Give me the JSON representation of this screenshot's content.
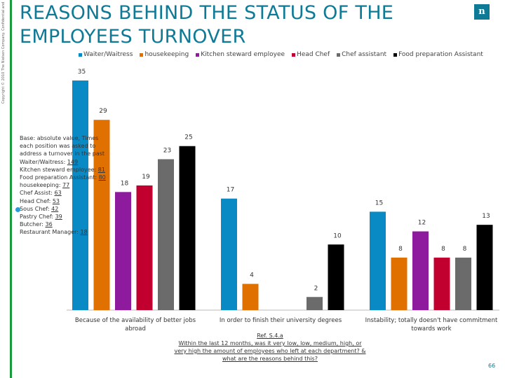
{
  "header": {
    "copyright": "Copyright © 2010 The Nielsen Company. Confidential and proprietary.",
    "title_line1": "REASONS BEHIND THE STATUS OF THE",
    "title_line2": "EMPLOYEES TURNOVER",
    "logo_text": "n"
  },
  "base_note": {
    "lines": [
      {
        "label": "Base: absolute value, Times",
        "value": ""
      },
      {
        "label": "each position was asked to",
        "value": ""
      },
      {
        "label": "address a turnover in the past",
        "value": ""
      },
      {
        "label": "Waiter/Waitress: ",
        "value": "149"
      },
      {
        "label": "Kitchen steward employee: ",
        "value": "81"
      },
      {
        "label": "Food preparation Assistant: ",
        "value": "80"
      },
      {
        "label": "housekeeping: ",
        "value": "77"
      },
      {
        "label": "Chef Assist: ",
        "value": "63"
      },
      {
        "label": "Head Chef: ",
        "value": "53"
      },
      {
        "label": "Sous Chef: ",
        "value": "42"
      },
      {
        "label": "Pastry Chef: ",
        "value": "39"
      },
      {
        "label": "Butcher: ",
        "value": "36"
      },
      {
        "label": "Restaurant Manager: ",
        "value": "18"
      }
    ]
  },
  "ref_note": {
    "line1": "Ref. S.4.a",
    "line2": "Within the last 12 months, was it very low, low, medium, high, or",
    "line3": "very high the amount of employees who left at each department? &",
    "line4": "what are the reasons behind this?"
  },
  "page_number": "66",
  "chart_data": {
    "type": "bar",
    "title": "REASONS BEHIND THE STATUS OF THE EMPLOYEES TURNOVER",
    "xlabel": "",
    "ylabel": "",
    "ylim": [
      0,
      35
    ],
    "legend_position": "top",
    "categories": [
      "Because of the availability of better jobs abroad",
      "In order to finish their university degrees",
      "Instability; totally doesn't have commitment towards work"
    ],
    "series": [
      {
        "name": "Waiter/Waitress",
        "color": "#0a8ac4",
        "values": [
          35,
          17,
          15
        ]
      },
      {
        "name": "housekeeping",
        "color": "#e07000",
        "values": [
          29,
          4,
          8
        ]
      },
      {
        "name": "Kitchen steward employee",
        "color": "#8e1a9e",
        "values": [
          18,
          0,
          12
        ]
      },
      {
        "name": "Head Chef",
        "color": "#c2002f",
        "values": [
          19,
          0,
          8
        ]
      },
      {
        "name": "Chef assistant",
        "color": "#6b6b6b",
        "values": [
          23,
          2,
          8
        ]
      },
      {
        "name": "Food preparation Assistant",
        "color": "#000000",
        "values": [
          25,
          10,
          13
        ]
      }
    ]
  }
}
